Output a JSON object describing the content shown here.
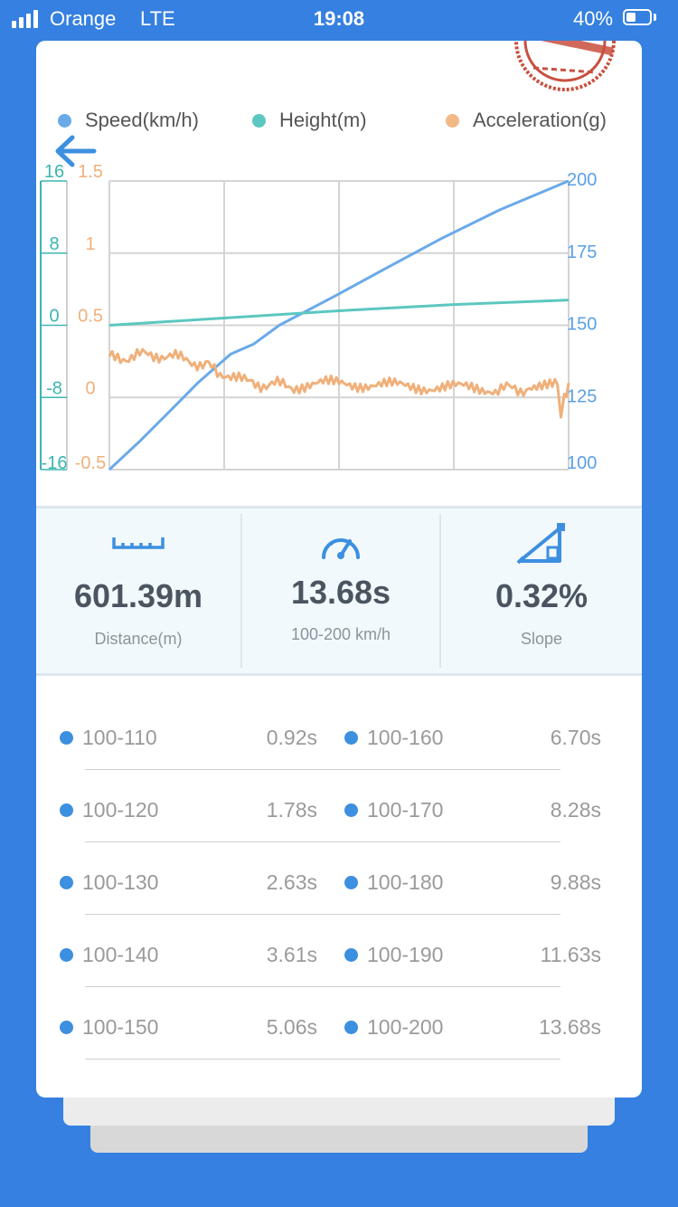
{
  "status": {
    "carrier": "Orange",
    "network": "LTE",
    "time": "19:08",
    "battery_pct": "40%",
    "battery_level": 0.4
  },
  "nav": {
    "back_icon": "back-arrow-icon",
    "stamp_icon": "certified-stamp-icon"
  },
  "legend": [
    {
      "label": "Speed(km/h)",
      "color": "#6aaae8"
    },
    {
      "label": "Height(m)",
      "color": "#5cc7c0"
    },
    {
      "label": "Acceleration(g)",
      "color": "#f2b886"
    }
  ],
  "chart_data": {
    "type": "line",
    "axes": {
      "height": {
        "ticks": [
          "16",
          "8",
          "0",
          "-8",
          "-16"
        ],
        "range": [
          -16,
          16
        ],
        "color": "#3bb6b0"
      },
      "acceleration": {
        "ticks": [
          "1.5",
          "1",
          "0.5",
          "0",
          "-0.5"
        ],
        "range": [
          -0.5,
          1.5
        ],
        "color": "#f0b07a"
      },
      "speed": {
        "ticks": [
          "200",
          "175",
          "150",
          "125",
          "100"
        ],
        "range": [
          100,
          200
        ],
        "color": "#5aa0e6"
      }
    },
    "grid": true,
    "x_range": [
      0,
      13.68
    ],
    "series": [
      {
        "name": "Speed(km/h)",
        "axis": "speed",
        "color": "#6aaae8",
        "x": [
          0,
          0.92,
          1.78,
          2.63,
          3.61,
          4.3,
          5.06,
          6.7,
          8.28,
          9.88,
          11.63,
          13.68
        ],
        "y": [
          100,
          110,
          120,
          130,
          140,
          143.5,
          150,
          160,
          170,
          180,
          190,
          200
        ]
      },
      {
        "name": "Height(m)",
        "axis": "height",
        "color": "#5cc7c0",
        "x": [
          0,
          3.42,
          6.84,
          10.26,
          13.68
        ],
        "y": [
          0,
          0.8,
          1.6,
          2.3,
          2.8
        ]
      },
      {
        "name": "Acceleration(g)",
        "axis": "acceleration",
        "color": "#f0b07a",
        "x": [
          0,
          1.4,
          2.7,
          3.3,
          4.1,
          5.5,
          7,
          8.5,
          10,
          11.5,
          12.5,
          13.35,
          13.45,
          13.55,
          13.68
        ],
        "y": [
          0.27,
          0.3,
          0.24,
          0.18,
          0.1,
          0.08,
          0.1,
          0.08,
          0.07,
          0.06,
          0.06,
          0.08,
          -0.12,
          0.02,
          0.1
        ]
      }
    ]
  },
  "stats": [
    {
      "value": "601.39m",
      "label": "Distance(m)",
      "icon": "ruler-icon"
    },
    {
      "value": "13.68s",
      "label": "100-200 km/h",
      "icon": "speedometer-icon"
    },
    {
      "value": "0.32%",
      "label": "Slope",
      "icon": "slope-icon"
    }
  ],
  "accent": "#3d8fe0",
  "splits": [
    {
      "left": {
        "range": "100-110",
        "time": "0.92s"
      },
      "right": {
        "range": "100-160",
        "time": "6.70s"
      }
    },
    {
      "left": {
        "range": "100-120",
        "time": "1.78s"
      },
      "right": {
        "range": "100-170",
        "time": "8.28s"
      }
    },
    {
      "left": {
        "range": "100-130",
        "time": "2.63s"
      },
      "right": {
        "range": "100-180",
        "time": "9.88s"
      }
    },
    {
      "left": {
        "range": "100-140",
        "time": "3.61s"
      },
      "right": {
        "range": "100-190",
        "time": "11.63s"
      }
    },
    {
      "left": {
        "range": "100-150",
        "time": "5.06s"
      },
      "right": {
        "range": "100-200",
        "time": "13.68s"
      }
    }
  ]
}
